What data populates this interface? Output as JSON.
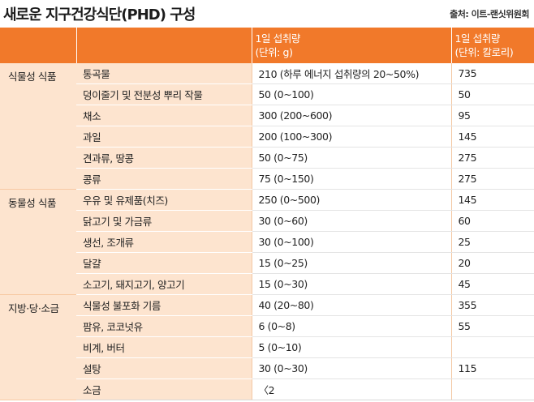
{
  "title": "새로운 지구건강식단(PHD) 구성",
  "source": "출처: 이트-랜싯위원회",
  "header": {
    "col1": "",
    "col2": "",
    "col3_line1": "1일 섭취량",
    "col3_line2": "(단위: g)",
    "col4_line1": "1일 섭취량",
    "col4_line2": "(단위: 칼로리)"
  },
  "groups": [
    {
      "category": "식물성 식품",
      "rows": [
        {
          "food": "통곡물",
          "grams": "210 (하루 에너지 섭취량의 20~50%)",
          "calories": "735"
        },
        {
          "food": "덩이줄기 및 전분성 뿌리 작물",
          "grams": "50 (0~100)",
          "calories": "50"
        },
        {
          "food": "채소",
          "grams": "300 (200~600)",
          "calories": "95"
        },
        {
          "food": "과일",
          "grams": "200 (100~300)",
          "calories": "145"
        },
        {
          "food": "견과류, 땅콩",
          "grams": "50 (0~75)",
          "calories": "275"
        },
        {
          "food": "콩류",
          "grams": "75 (0~150)",
          "calories": "275"
        }
      ]
    },
    {
      "category": "동물성 식품",
      "rows": [
        {
          "food": "우유 및 유제품(치즈)",
          "grams": "250 (0~500)",
          "calories": "145"
        },
        {
          "food": "닭고기 및 가금류",
          "grams": "30 (0~60)",
          "calories": "60"
        },
        {
          "food": "생선, 조개류",
          "grams": "30 (0~100)",
          "calories": "25"
        },
        {
          "food": "달걀",
          "grams": "15 (0~25)",
          "calories": "20"
        },
        {
          "food": "소고기, 돼지고기, 양고기",
          "grams": "15 (0~30)",
          "calories": "45"
        }
      ]
    },
    {
      "category": "지방·당·소금",
      "rows": [
        {
          "food": "식물성 불포화 기름",
          "grams": "40 (20~80)",
          "calories": "355"
        },
        {
          "food": "팜유, 코코넛유",
          "grams": "6 (0~8)",
          "calories": "55"
        },
        {
          "food": "비계, 버터",
          "grams": "5 (0~10)",
          "calories": ""
        },
        {
          "food": "설탕",
          "grams": "30 (0~30)",
          "calories": "115"
        },
        {
          "food": "소금",
          "grams": "〈2",
          "calories": ""
        }
      ]
    }
  ]
}
